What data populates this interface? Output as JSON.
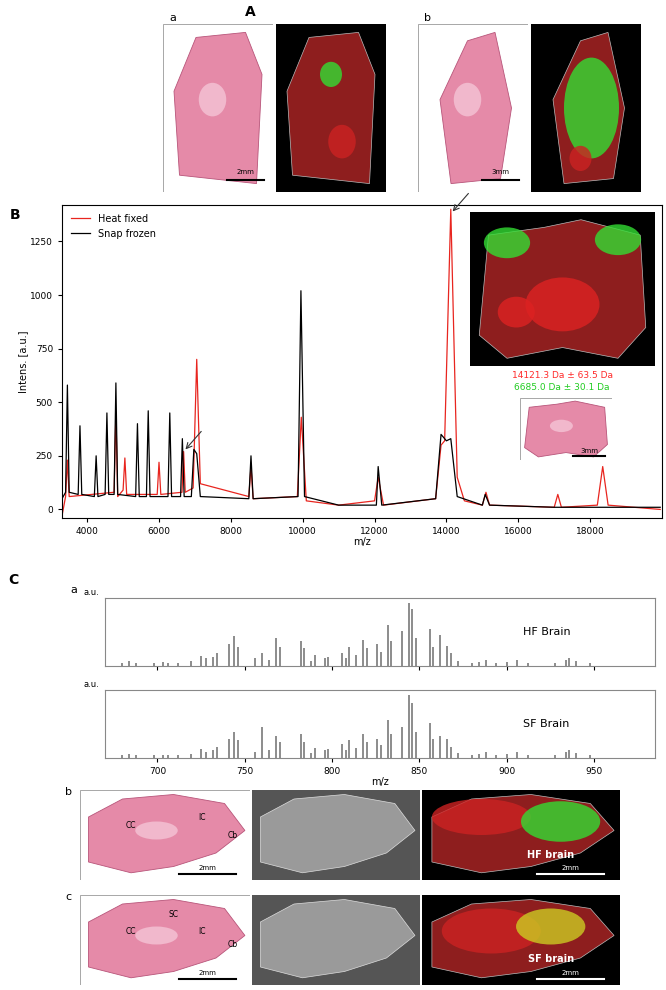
{
  "panels": {
    "A": {
      "label": "A",
      "subpanels": [
        {
          "label": "a",
          "scale_bar": "2mm"
        },
        {
          "label": "b",
          "scale_bar": "3mm"
        }
      ]
    },
    "B": {
      "label": "B",
      "inset": {
        "texts": [
          "14121.3 Da ± 63.5 Da",
          "6685.0 Da ± 30.1 Da"
        ],
        "colors": [
          "#ff2a2a",
          "#22cc22"
        ],
        "scale_bar": "3mm"
      }
    },
    "C": {
      "label": "C",
      "spectra_label": "a",
      "rows": [
        {
          "label": "b",
          "regions": [
            "CC",
            "IC",
            "Cb"
          ],
          "scale_bar": "2mm",
          "name": "HF brain"
        },
        {
          "label": "c",
          "regions": [
            "CC",
            "SC",
            "IC",
            "Cb"
          ],
          "scale_bar": "2mm",
          "name": "SF brain"
        }
      ]
    }
  },
  "chart_data": [
    {
      "type": "line",
      "x_label": "m/z",
      "y_label": "Intens. [a.u.]",
      "xlim": [
        3300,
        20000
      ],
      "ylim": [
        -40,
        1420
      ],
      "xticks": [
        4000,
        6000,
        8000,
        10000,
        12000,
        14000,
        16000,
        18000
      ],
      "yticks": [
        0,
        250,
        500,
        750,
        1000,
        1250
      ],
      "legend": "upper left",
      "arrows": [
        {
          "x": 14121.3,
          "y": 1380
        },
        {
          "x": 6685.0,
          "y": 270
        }
      ],
      "series": [
        {
          "name": "Heat fixed",
          "color": "#e8251f",
          "x": [
            3300,
            3400,
            3450,
            3500,
            4750,
            4800,
            4850,
            5000,
            5050,
            5100,
            5950,
            6000,
            6050,
            6640,
            6685,
            6730,
            6950,
            7050,
            7150,
            8500,
            8560,
            8620,
            9850,
            9960,
            10100,
            11000,
            12000,
            12100,
            12250,
            13700,
            13850,
            13950,
            14121.3,
            14300,
            14500,
            15000,
            15100,
            15200,
            17000,
            17100,
            17200,
            18200,
            18350,
            18500,
            19950
          ],
          "values": [
            -30,
            60,
            230,
            60,
            80,
            450,
            60,
            90,
            240,
            70,
            70,
            220,
            70,
            80,
            270,
            80,
            100,
            700,
            120,
            60,
            200,
            50,
            60,
            430,
            40,
            20,
            40,
            150,
            20,
            50,
            300,
            320,
            1400,
            150,
            40,
            20,
            80,
            20,
            10,
            70,
            10,
            20,
            200,
            20,
            0
          ]
        },
        {
          "name": "Snap frozen",
          "color": "#000000",
          "x": [
            3300,
            3400,
            3450,
            3500,
            3750,
            3800,
            3850,
            4200,
            4250,
            4300,
            4500,
            4550,
            4600,
            4750,
            4800,
            4850,
            5350,
            5400,
            5450,
            5650,
            5700,
            5750,
            6250,
            6300,
            6350,
            6600,
            6650,
            6700,
            6900,
            6970,
            7050,
            7150,
            8500,
            8560,
            8620,
            9870,
            9950,
            10050,
            11000,
            12050,
            12100,
            12200,
            13700,
            13850,
            14000,
            14121.3,
            14300,
            15000,
            15080,
            15200,
            17000,
            19950
          ],
          "values": [
            50,
            80,
            580,
            80,
            70,
            390,
            70,
            60,
            250,
            60,
            70,
            450,
            70,
            70,
            590,
            70,
            60,
            400,
            60,
            60,
            460,
            60,
            60,
            450,
            60,
            60,
            330,
            60,
            60,
            280,
            260,
            60,
            50,
            250,
            50,
            60,
            1020,
            60,
            20,
            20,
            200,
            20,
            50,
            350,
            320,
            330,
            60,
            20,
            70,
            20,
            10,
            10
          ]
        }
      ]
    },
    {
      "type": "stem",
      "title": "HF Brain",
      "y_label": "a.u.",
      "color": "#6e6e6e",
      "xlim": [
        670,
        985
      ],
      "ylim": [
        0,
        1.08
      ],
      "xticks": [
        700,
        750,
        800,
        850,
        900,
        950
      ],
      "yticks": [],
      "tick_labels": false,
      "x": [
        680,
        684,
        688,
        698,
        703,
        706,
        712,
        719,
        725,
        728,
        732,
        734,
        741,
        744,
        746,
        756,
        760,
        764,
        768,
        770,
        782,
        784,
        788,
        790,
        796,
        798,
        806,
        808,
        810,
        814,
        818,
        820,
        826,
        828,
        832,
        834,
        840,
        844,
        846,
        848,
        856,
        858,
        862,
        866,
        868,
        872,
        880,
        884,
        888,
        894,
        900,
        906,
        912,
        928,
        934,
        936,
        940,
        948
      ],
      "values": [
        0.05,
        0.08,
        0.04,
        0.04,
        0.06,
        0.05,
        0.04,
        0.08,
        0.16,
        0.12,
        0.15,
        0.2,
        0.35,
        0.48,
        0.3,
        0.12,
        0.2,
        0.1,
        0.45,
        0.3,
        0.4,
        0.28,
        0.08,
        0.18,
        0.12,
        0.15,
        0.2,
        0.12,
        0.3,
        0.18,
        0.42,
        0.28,
        0.35,
        0.22,
        0.65,
        0.4,
        0.55,
        1.0,
        0.9,
        0.45,
        0.58,
        0.3,
        0.5,
        0.32,
        0.2,
        0.08,
        0.05,
        0.06,
        0.1,
        0.05,
        0.06,
        0.1,
        0.04,
        0.05,
        0.1,
        0.12,
        0.08,
        0.04
      ]
    },
    {
      "type": "stem",
      "title": "SF Brain",
      "y_label": "a.u.",
      "x_label": "m/z",
      "color": "#6e6e6e",
      "xlim": [
        670,
        985
      ],
      "ylim": [
        0,
        1.08
      ],
      "xticks": [
        700,
        750,
        800,
        850,
        900,
        950
      ],
      "yticks": [],
      "tick_labels": "x",
      "x": [
        680,
        684,
        688,
        698,
        703,
        706,
        712,
        719,
        725,
        728,
        732,
        734,
        741,
        744,
        746,
        756,
        760,
        764,
        768,
        770,
        782,
        784,
        788,
        790,
        796,
        798,
        806,
        808,
        810,
        814,
        818,
        820,
        826,
        828,
        832,
        834,
        840,
        844,
        846,
        848,
        856,
        858,
        862,
        866,
        868,
        872,
        880,
        884,
        888,
        894,
        900,
        906,
        912,
        928,
        934,
        936,
        940,
        948
      ],
      "values": [
        0.05,
        0.07,
        0.04,
        0.04,
        0.05,
        0.05,
        0.04,
        0.07,
        0.14,
        0.1,
        0.13,
        0.18,
        0.3,
        0.42,
        0.28,
        0.1,
        0.5,
        0.12,
        0.35,
        0.25,
        0.38,
        0.26,
        0.08,
        0.16,
        0.12,
        0.14,
        0.22,
        0.12,
        0.28,
        0.16,
        0.38,
        0.26,
        0.3,
        0.2,
        0.6,
        0.38,
        0.5,
        1.0,
        0.88,
        0.42,
        0.55,
        0.3,
        0.35,
        0.3,
        0.18,
        0.08,
        0.05,
        0.06,
        0.1,
        0.05,
        0.06,
        0.09,
        0.04,
        0.05,
        0.1,
        0.12,
        0.08,
        0.04
      ]
    }
  ]
}
